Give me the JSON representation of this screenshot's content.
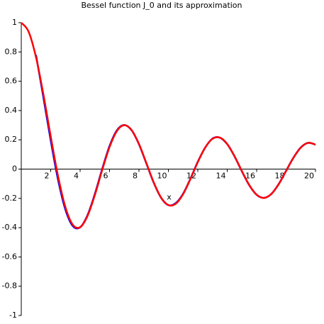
{
  "chart_data": {
    "type": "line",
    "title": "Bessel function J_0 and its approximation",
    "xlabel": "x",
    "x": [
      0,
      0.5,
      1,
      1.5,
      2,
      2.5,
      3,
      3.5,
      4,
      4.5,
      5,
      5.5,
      6,
      6.5,
      7,
      7.5,
      8,
      8.5,
      9,
      9.5,
      10,
      10.5,
      11,
      11.5,
      12,
      12.5,
      13,
      13.5,
      14,
      14.5,
      15,
      15.5,
      16,
      16.5,
      17,
      17.5,
      18,
      18.5,
      19,
      19.5,
      20
    ],
    "series": [
      {
        "color": "#0000ff",
        "values": [
          null,
          null,
          0.7796,
          0.4921,
          0.1968,
          -0.0723,
          -0.2766,
          -0.3886,
          -0.3977,
          -0.3156,
          -0.1702,
          0.0007,
          0.1574,
          0.2647,
          0.3007,
          0.2649,
          0.1696,
          0.0397,
          -0.0923,
          -0.1953,
          -0.2464,
          -0.2322,
          -0.1683,
          -0.0652,
          0.05,
          0.1461,
          0.2088,
          0.2147,
          0.17,
          0.0861,
          -0.0159,
          -0.1106,
          -0.1757,
          -0.1964,
          -0.1694,
          -0.1018,
          -0.0121,
          0.0781,
          0.1477,
          0.1793,
          0.1668
        ]
      },
      {
        "color": "#ff0000",
        "values": [
          1,
          0.9385,
          0.7652,
          0.5118,
          0.2239,
          -0.0484,
          -0.2601,
          -0.3801,
          -0.3971,
          -0.3205,
          -0.1776,
          -0.0068,
          0.1506,
          0.2601,
          0.3001,
          0.2663,
          0.1717,
          0.0419,
          -0.0903,
          -0.1939,
          -0.2459,
          -0.2366,
          -0.1712,
          -0.0677,
          0.0477,
          0.1469,
          0.2069,
          0.215,
          0.1711,
          0.0875,
          -0.0142,
          -0.1092,
          -0.1749,
          -0.1973,
          -0.1699,
          -0.1034,
          -0.0134,
          0.0768,
          0.1466,
          0.1794,
          0.167
        ]
      }
    ],
    "xlim": [
      0,
      20
    ],
    "ylim": [
      -1,
      1
    ],
    "xticks": [
      2,
      4,
      6,
      8,
      10,
      12,
      14,
      16,
      18,
      20
    ],
    "yticks": [
      -1,
      -0.8,
      -0.6,
      -0.4,
      -0.2,
      0,
      0.2,
      0.4,
      0.6,
      0.8,
      1
    ],
    "grid": false
  }
}
